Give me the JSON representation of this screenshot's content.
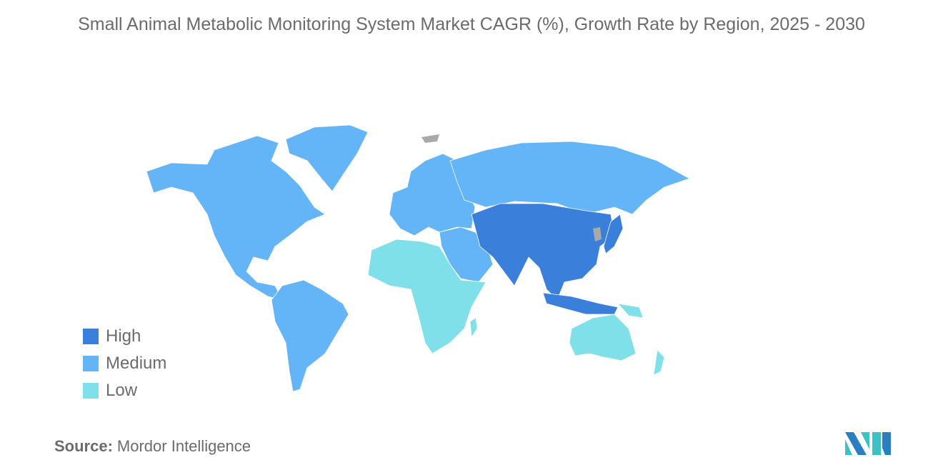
{
  "title": "Small Animal Metabolic Monitoring System Market CAGR (%), Growth Rate by Region, 2025 - 2030",
  "legend": [
    {
      "label": "High",
      "color": "#3a7fd9"
    },
    {
      "label": "Medium",
      "color": "#63b5f8"
    },
    {
      "label": "Low",
      "color": "#7fe0ea"
    }
  ],
  "no_data_color": "#a9a9a9",
  "regions": {
    "north_america": "Medium",
    "south_america": "Medium",
    "europe": "Medium",
    "russia_north_asia": "Medium",
    "middle_east": "Medium",
    "africa": "Low",
    "asia_pacific_core": "High",
    "australia_oceania": "Low"
  },
  "source": {
    "label": "Source:",
    "value": "Mordor Intelligence"
  }
}
